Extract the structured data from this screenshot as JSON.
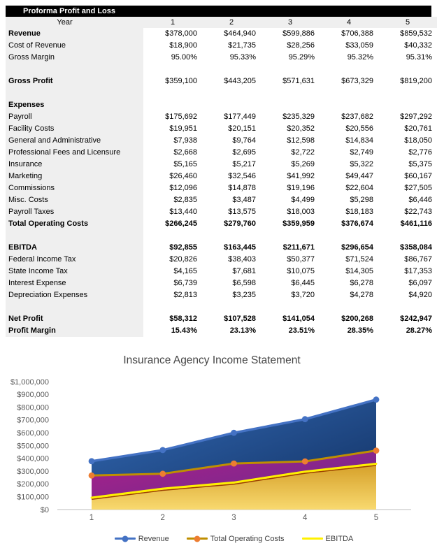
{
  "sheet_title": "Proforma Profit and Loss",
  "table": {
    "header": {
      "year_label": "Year",
      "years": [
        "1",
        "2",
        "3",
        "4",
        "5"
      ]
    },
    "rows": [
      {
        "label": "Revenue",
        "style": "label-bold",
        "values": [
          "$378,000",
          "$464,940",
          "$599,886",
          "$706,388",
          "$859,532"
        ]
      },
      {
        "label": "Cost of Revenue",
        "values": [
          "$18,900",
          "$21,735",
          "$28,256",
          "$33,059",
          "$40,332"
        ]
      },
      {
        "label": "Gross Margin",
        "values": [
          "95.00%",
          "95.33%",
          "95.29%",
          "95.32%",
          "95.31%"
        ]
      },
      {
        "spacer": true
      },
      {
        "label": "Gross Profit",
        "style": "label-bold",
        "values": [
          "$359,100",
          "$443,205",
          "$571,631",
          "$673,329",
          "$819,200"
        ]
      },
      {
        "spacer": true
      },
      {
        "label": "Expenses",
        "style": "label-bold",
        "values": [
          "",
          "",
          "",
          "",
          ""
        ]
      },
      {
        "label": "Payroll",
        "values": [
          "$175,692",
          "$177,449",
          "$235,329",
          "$237,682",
          "$297,292"
        ]
      },
      {
        "label": "Facility Costs",
        "values": [
          "$19,951",
          "$20,151",
          "$20,352",
          "$20,556",
          "$20,761"
        ]
      },
      {
        "label": "General and Administrative",
        "values": [
          "$7,938",
          "$9,764",
          "$12,598",
          "$14,834",
          "$18,050"
        ]
      },
      {
        "label": "Professional Fees and Licensure",
        "values": [
          "$2,668",
          "$2,695",
          "$2,722",
          "$2,749",
          "$2,776"
        ]
      },
      {
        "label": "Insurance",
        "values": [
          "$5,165",
          "$5,217",
          "$5,269",
          "$5,322",
          "$5,375"
        ]
      },
      {
        "label": "Marketing",
        "values": [
          "$26,460",
          "$32,546",
          "$41,992",
          "$49,447",
          "$60,167"
        ]
      },
      {
        "label": "Commissions",
        "values": [
          "$12,096",
          "$14,878",
          "$19,196",
          "$22,604",
          "$27,505"
        ]
      },
      {
        "label": "Misc. Costs",
        "values": [
          "$2,835",
          "$3,487",
          "$4,499",
          "$5,298",
          "$6,446"
        ]
      },
      {
        "label": "Payroll Taxes",
        "values": [
          "$13,440",
          "$13,575",
          "$18,003",
          "$18,183",
          "$22,743"
        ]
      },
      {
        "label": "Total Operating Costs",
        "style": "all-bold",
        "values": [
          "$266,245",
          "$279,760",
          "$359,959",
          "$376,674",
          "$461,116"
        ]
      },
      {
        "spacer": true
      },
      {
        "label": "EBITDA",
        "style": "all-bold",
        "values": [
          "$92,855",
          "$163,445",
          "$211,671",
          "$296,654",
          "$358,084"
        ]
      },
      {
        "label": "Federal Income Tax",
        "values": [
          "$20,826",
          "$38,403",
          "$50,377",
          "$71,524",
          "$86,767"
        ]
      },
      {
        "label": "State Income Tax",
        "values": [
          "$4,165",
          "$7,681",
          "$10,075",
          "$14,305",
          "$17,353"
        ]
      },
      {
        "label": "Interest Expense",
        "values": [
          "$6,739",
          "$6,598",
          "$6,445",
          "$6,278",
          "$6,097"
        ]
      },
      {
        "label": "Depreciation Expenses",
        "values": [
          "$2,813",
          "$3,235",
          "$3,720",
          "$4,278",
          "$4,920"
        ]
      },
      {
        "spacer": true
      },
      {
        "label": "Net Profit",
        "style": "all-bold",
        "values": [
          "$58,312",
          "$107,528",
          "$141,054",
          "$200,268",
          "$242,947"
        ]
      },
      {
        "label": "Profit Margin",
        "style": "all-bold",
        "values": [
          "15.43%",
          "23.13%",
          "23.51%",
          "28.35%",
          "28.27%"
        ]
      }
    ]
  },
  "chart_data": {
    "type": "area",
    "title": "Insurance Agency Income Statement",
    "x": [
      1,
      2,
      3,
      4,
      5
    ],
    "x_ticks": [
      "1",
      "2",
      "3",
      "4",
      "5"
    ],
    "series": [
      {
        "name": "Revenue",
        "values": [
          378000,
          464940,
          599886,
          706388,
          859532
        ],
        "line_color": "#4472C4",
        "marker_color": "#4472C4",
        "has_marker": true,
        "fill_top": "#336AB5",
        "fill_bottom": "#112F60"
      },
      {
        "name": "Total Operating Costs",
        "values": [
          266245,
          279760,
          359959,
          376674,
          461116
        ],
        "line_color": "#BF8F00",
        "marker_color": "#ED7D31",
        "has_marker": true,
        "fill_top": "#AC2089",
        "fill_bottom": "#662B8F"
      },
      {
        "name": "EBITDA",
        "values": [
          92855,
          163445,
          211671,
          296654,
          358084
        ],
        "line_color": "#FFF100",
        "marker_color": null,
        "has_marker": false,
        "fill_top": "#D59F28",
        "fill_bottom": "#F8D96F",
        "shadow_color": "#9C3F00"
      }
    ],
    "ylabel_format": "currency",
    "ylim": [
      0,
      1000000
    ],
    "y_ticks": [
      "$1,000,000",
      "$900,000",
      "$800,000",
      "$700,000",
      "$600,000",
      "$500,000",
      "$400,000",
      "$300,000",
      "$200,000",
      "$100,000",
      "$0"
    ],
    "grid": false,
    "legend_position": "bottom",
    "axis_color": "#C9C9C9"
  }
}
